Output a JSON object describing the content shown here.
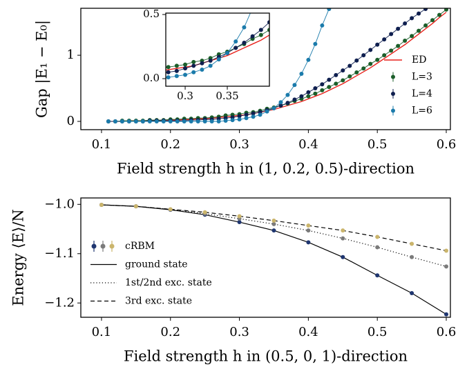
{
  "chart_data": [
    {
      "type": "line",
      "x_label": "Field strength h in (1, 0.2, 0.5)-direction",
      "y_label": "Gap |E₁ − E₀|",
      "x": [
        0.11,
        0.12,
        0.13,
        0.14,
        0.15,
        0.16,
        0.17,
        0.18,
        0.19,
        0.2,
        0.21,
        0.22,
        0.23,
        0.24,
        0.25,
        0.26,
        0.27,
        0.28,
        0.29,
        0.3,
        0.31,
        0.32,
        0.33,
        0.34,
        0.35,
        0.36,
        0.37,
        0.38,
        0.39,
        0.4,
        0.41,
        0.42,
        0.43,
        0.44,
        0.45,
        0.46,
        0.47,
        0.48,
        0.49,
        0.5,
        0.51,
        0.52,
        0.53,
        0.54,
        0.55,
        0.56,
        0.57,
        0.58,
        0.59,
        0.6
      ],
      "series": [
        {
          "name": "ED",
          "color": "#e8201a",
          "marker": false,
          "values": [
            0.0,
            0.0,
            0.0,
            0.01,
            0.01,
            0.01,
            0.01,
            0.01,
            0.02,
            0.02,
            0.02,
            0.03,
            0.03,
            0.04,
            0.04,
            0.05,
            0.06,
            0.07,
            0.08,
            0.09,
            0.1,
            0.12,
            0.14,
            0.16,
            0.18,
            0.21,
            0.24,
            0.27,
            0.3,
            0.34,
            0.38,
            0.42,
            0.47,
            0.52,
            0.57,
            0.63,
            0.69,
            0.75,
            0.81,
            0.88,
            0.95,
            1.02,
            1.09,
            1.16,
            1.24,
            1.32,
            1.4,
            1.48,
            1.57,
            1.65
          ]
        },
        {
          "name": "L=3",
          "color": "#1b5e2a",
          "marker": true,
          "values": [
            0.0,
            0.0,
            0.01,
            0.01,
            0.01,
            0.01,
            0.02,
            0.02,
            0.02,
            0.03,
            0.03,
            0.04,
            0.04,
            0.05,
            0.05,
            0.06,
            0.07,
            0.09,
            0.1,
            0.11,
            0.13,
            0.14,
            0.16,
            0.19,
            0.21,
            0.24,
            0.27,
            0.31,
            0.34,
            0.38,
            0.42,
            0.47,
            0.52,
            0.57,
            0.62,
            0.68,
            0.74,
            0.8,
            0.87,
            0.93,
            1.0,
            1.07,
            1.14,
            1.22,
            1.29,
            1.37,
            1.45,
            1.53,
            1.61,
            1.69
          ]
        },
        {
          "name": "L=4",
          "color": "#0f1f4f",
          "marker": true,
          "values": [
            0.0,
            0.0,
            0.0,
            0.0,
            0.0,
            0.0,
            0.01,
            0.01,
            0.01,
            0.01,
            0.01,
            0.01,
            0.02,
            0.02,
            0.03,
            0.03,
            0.04,
            0.05,
            0.06,
            0.08,
            0.1,
            0.12,
            0.14,
            0.17,
            0.2,
            0.24,
            0.28,
            0.33,
            0.38,
            0.44,
            0.5,
            0.56,
            0.63,
            0.7,
            0.77,
            0.84,
            0.92,
            1.0,
            1.08,
            1.16,
            1.24,
            1.32,
            1.4,
            1.48,
            1.56,
            1.63,
            1.7,
            null,
            null,
            null
          ]
        },
        {
          "name": "L=6",
          "color": "#1b7bab",
          "marker": true,
          "values": [
            0.0,
            0.0,
            0.0,
            0.0,
            0.0,
            0.0,
            0.0,
            0.0,
            0.0,
            0.0,
            0.0,
            0.0,
            0.0,
            0.0,
            0.0,
            0.0,
            0.0,
            0.01,
            0.02,
            0.03,
            0.05,
            0.07,
            0.1,
            0.15,
            0.2,
            0.29,
            0.4,
            0.55,
            0.72,
            0.93,
            1.17,
            1.45,
            1.7,
            null,
            null,
            null,
            null,
            null,
            null,
            null,
            null,
            null,
            null,
            null,
            null,
            null,
            null,
            null,
            null,
            null
          ]
        }
      ],
      "xlim": [
        0.07,
        0.606
      ],
      "ylim": [
        -0.125,
        1.71
      ],
      "xticks": [
        0.1,
        0.2,
        0.3,
        0.4,
        0.5,
        0.6
      ],
      "yticks": [
        0,
        1
      ],
      "legend": "right",
      "inset": {
        "xlim": [
          0.277,
          0.4
        ],
        "ylim": [
          -0.059,
          0.511
        ],
        "xticks": [
          0.3,
          0.35
        ],
        "yticks": [
          {
            "value": 0,
            "label": "0.0"
          },
          0.5
        ]
      }
    },
    {
      "type": "line",
      "x_label": "Field strength h in (0.5, 0, 1)-direction",
      "y_label": "Energy ⟨E⟩/N",
      "x": [
        0.1,
        0.15,
        0.2,
        0.25,
        0.3,
        0.35,
        0.4,
        0.45,
        0.5,
        0.55,
        0.6
      ],
      "marker_label": "cRBM",
      "line_color": "#000000",
      "series": [
        {
          "name": "ground state",
          "color": "#1f3670",
          "marker": true,
          "linestyle": "solid",
          "values": [
            -1.001,
            -1.004,
            -1.011,
            -1.021,
            -1.036,
            -1.053,
            -1.077,
            -1.107,
            -1.144,
            -1.18,
            -1.223
          ]
        },
        {
          "name": "1st/2nd exc. state",
          "color": "#7b7b7b",
          "marker": true,
          "linestyle": "dotted",
          "values": [
            -1.001,
            -1.004,
            -1.01,
            -1.019,
            -1.029,
            -1.04,
            -1.053,
            -1.069,
            -1.087,
            -1.107,
            -1.126
          ]
        },
        {
          "name": "3rd exc. state",
          "color": "#cbb56c",
          "marker": true,
          "linestyle": "dashed",
          "values": [
            -1.001,
            -1.004,
            -1.01,
            -1.016,
            -1.024,
            -1.033,
            -1.043,
            -1.053,
            -1.066,
            -1.08,
            -1.094
          ]
        }
      ],
      "xlim": [
        0.07,
        0.606
      ],
      "ylim": [
        -1.229,
        -0.987
      ],
      "xticks": [
        0.1,
        0.2,
        0.3,
        0.4,
        0.5,
        0.6
      ],
      "yticks": [
        {
          "value": -1.0,
          "label": "−1.0"
        },
        {
          "value": -1.1,
          "label": "−1.1"
        },
        {
          "value": -1.2,
          "label": "−1.2"
        }
      ],
      "legend": "left"
    }
  ]
}
